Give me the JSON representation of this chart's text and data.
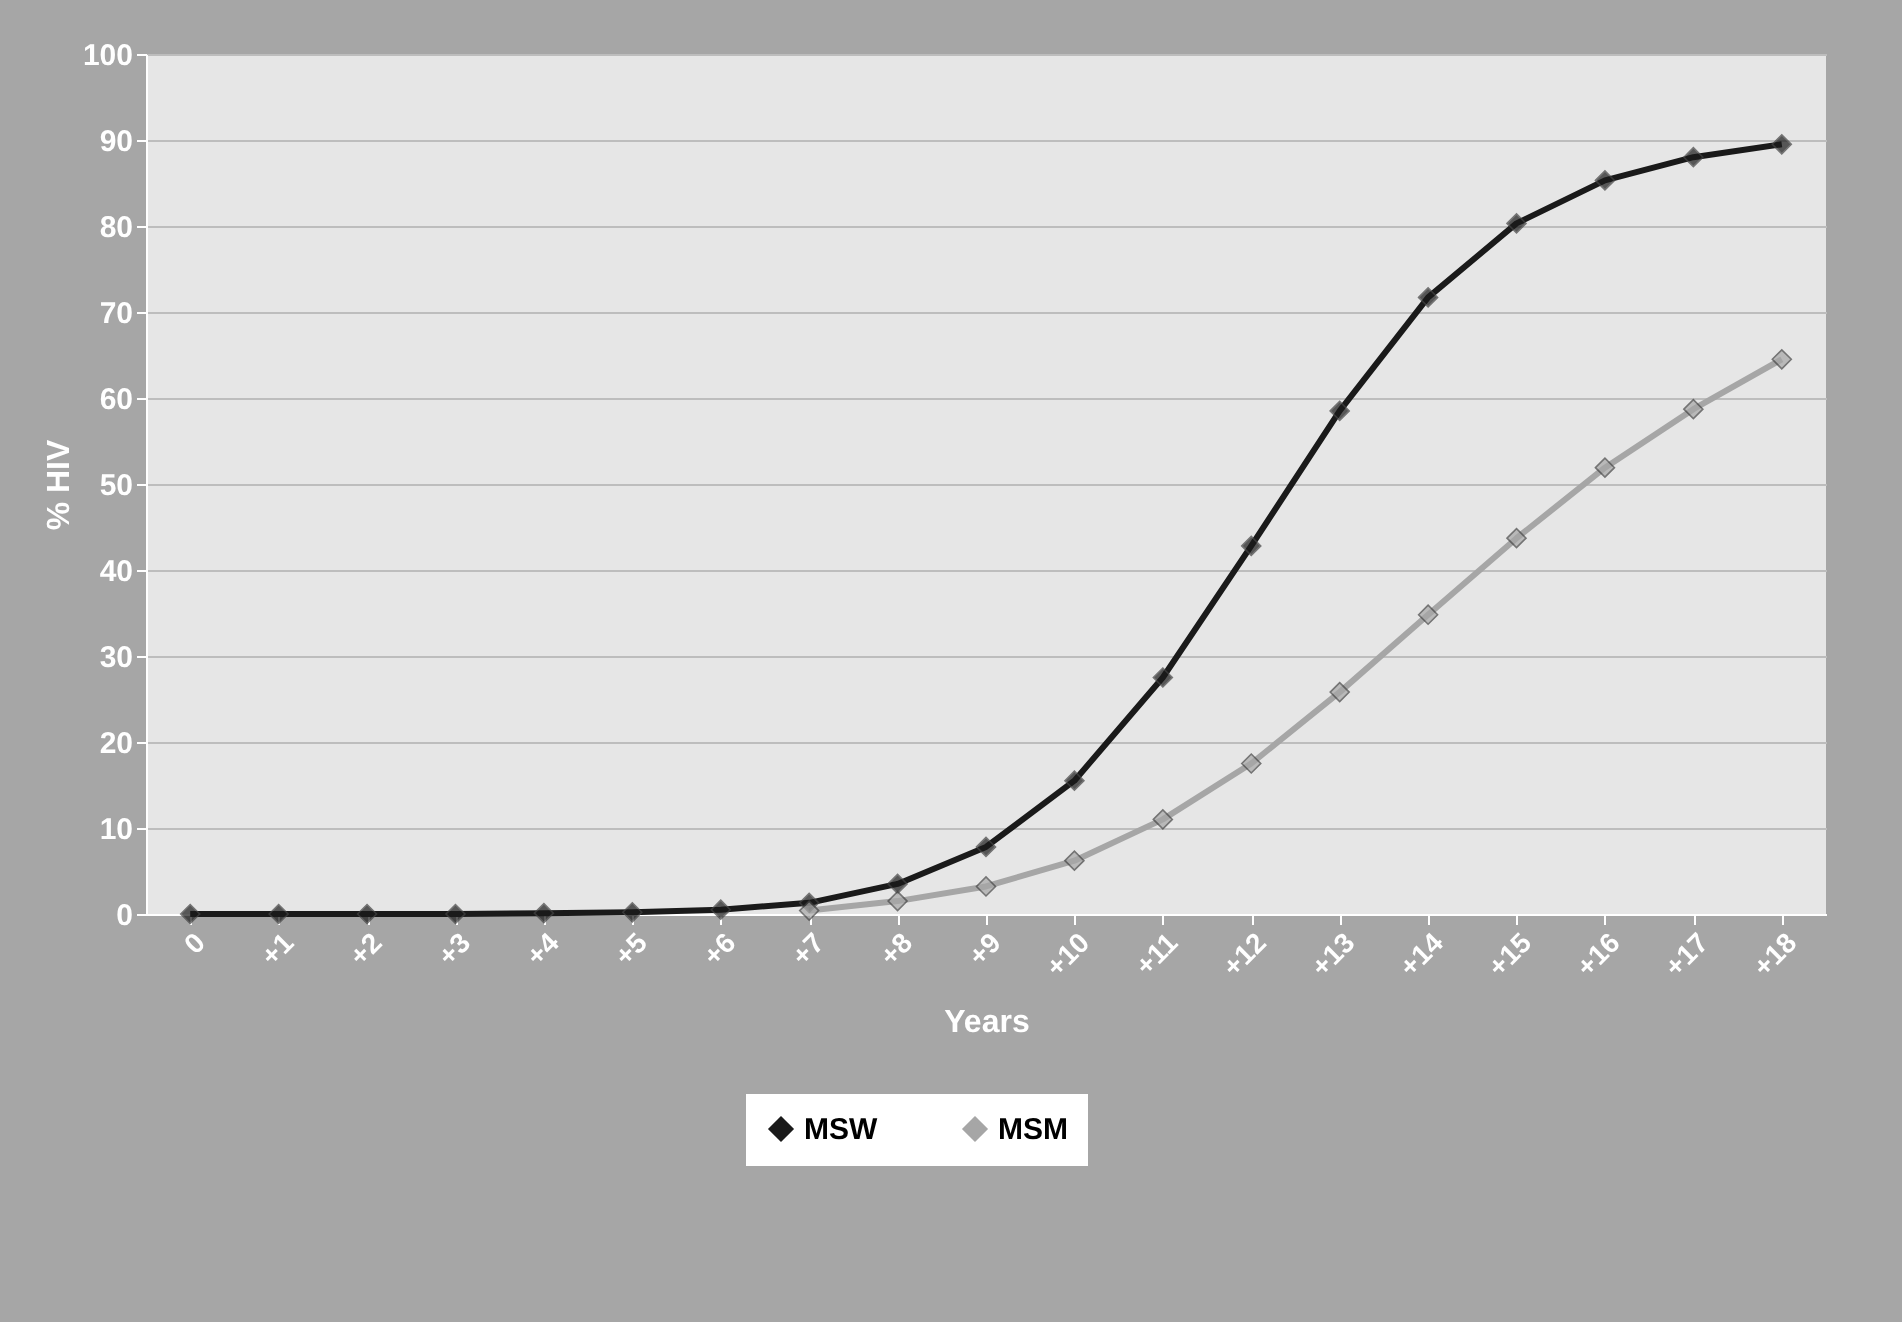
{
  "chart_data": {
    "type": "line",
    "xlabel": "Years",
    "ylabel": "% HIV",
    "categories": [
      "0",
      "+1",
      "+2",
      "+3",
      "+4",
      "+5",
      "+6",
      "+7",
      "+8",
      "+9",
      "+10",
      "+11",
      "+12",
      "+13",
      "+14",
      "+15",
      "+16",
      "+17",
      "+18"
    ],
    "series": [
      {
        "name": "MSW",
        "color": "#1a1a1a",
        "values": [
          0,
          0,
          0,
          0,
          0.1,
          0.2,
          0.5,
          1.3,
          3.5,
          7.8,
          15.5,
          27.5,
          42.8,
          58.5,
          71.7,
          80.3,
          85.3,
          88,
          89.5
        ]
      },
      {
        "name": "MSM",
        "color": "#a6a6a6",
        "values": [
          null,
          null,
          null,
          null,
          null,
          null,
          null,
          0.4,
          1.5,
          3.2,
          6.2,
          11,
          17.5,
          25.8,
          34.8,
          43.7,
          51.9,
          58.7,
          64.5
        ]
      }
    ],
    "ylim": [
      0,
      100
    ],
    "yticks": [
      0,
      10,
      20,
      30,
      40,
      50,
      60,
      70,
      80,
      90,
      100
    ],
    "grid": "y",
    "legend": "bottom",
    "marker": "diamond",
    "line_style": "solid"
  }
}
